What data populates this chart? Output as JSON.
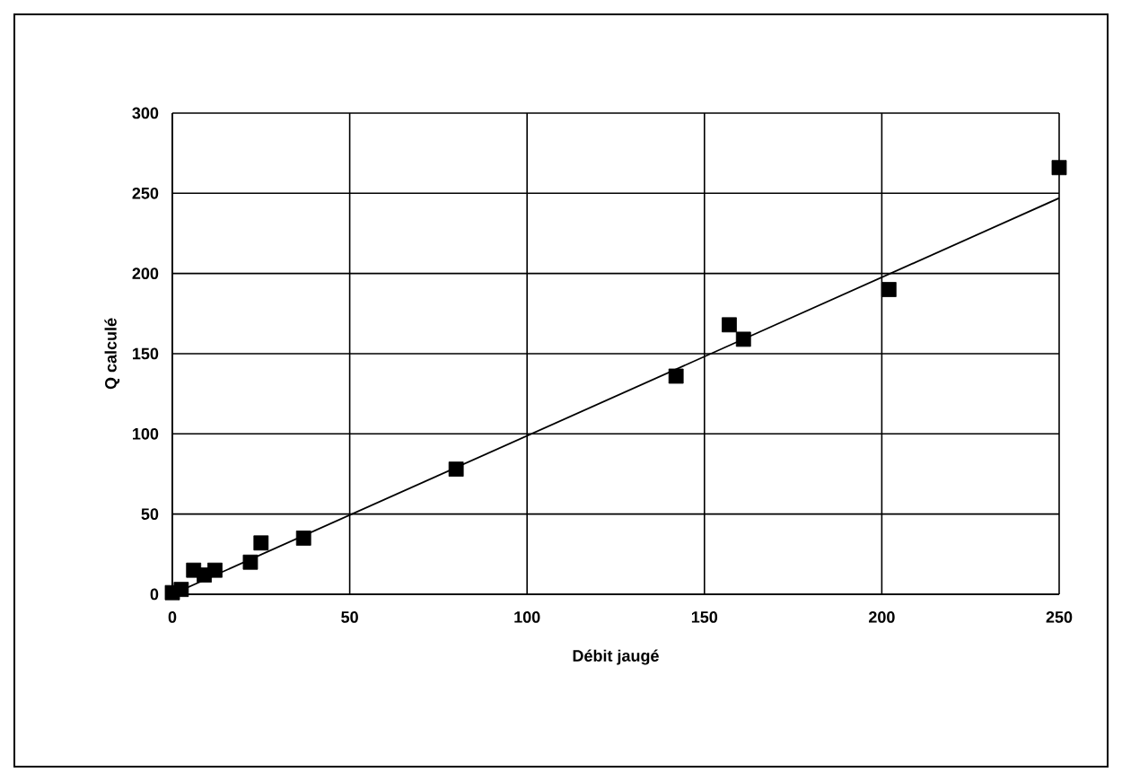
{
  "chart_data": {
    "type": "scatter",
    "xlabel": "Débit jaugé",
    "ylabel": "Q calculé",
    "xlim": [
      0,
      250
    ],
    "ylim": [
      0,
      300
    ],
    "xticks": [
      0,
      50,
      100,
      150,
      200,
      250
    ],
    "yticks": [
      0,
      50,
      100,
      150,
      200,
      250,
      300
    ],
    "grid": true,
    "marker": "square",
    "series": [
      {
        "color": "#000000",
        "x": [
          0,
          2.5,
          6,
          9,
          12,
          22,
          25,
          37,
          80,
          142,
          157,
          161,
          202,
          250
        ],
        "values": [
          1,
          3,
          15,
          12,
          15,
          20,
          32,
          35,
          78,
          136,
          168,
          159,
          190,
          266
        ]
      },
      {
        "type": "line",
        "color": "#000000",
        "marker": "none",
        "line_style": "solid",
        "x": [
          0,
          250
        ],
        "values": [
          0,
          247
        ]
      }
    ]
  }
}
